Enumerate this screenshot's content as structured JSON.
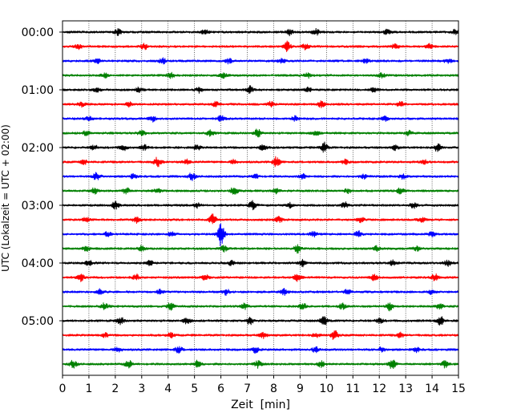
{
  "chart_data": {
    "type": "line",
    "title": "",
    "xlabel": "Zeit  [min]",
    "ylabel": "UTC (Lokalzeit = UTC + 02:00)",
    "xlim": [
      0,
      15
    ],
    "x_ticks": [
      "0",
      "1",
      "2",
      "3",
      "4",
      "5",
      "6",
      "7",
      "8",
      "9",
      "10",
      "11",
      "12",
      "13",
      "14",
      "15"
    ],
    "y_tick_labels": [
      "00:00",
      "01:00",
      "02:00",
      "03:00",
      "04:00",
      "05:00"
    ],
    "grid": "vertical dotted at each minute",
    "legend": "none",
    "trace_interval_min": 15,
    "trace_colors": [
      "#000000",
      "#ff0000",
      "#0000ff",
      "#008000"
    ],
    "series": [
      {
        "start": "00:00",
        "color": "#000000",
        "events": [
          [
            2.1,
            0.5
          ],
          [
            5.4,
            0.4
          ],
          [
            8.6,
            0.5
          ],
          [
            9.6,
            0.5
          ],
          [
            12.3,
            0.4
          ],
          [
            14.9,
            0.5
          ]
        ]
      },
      {
        "start": "00:15",
        "color": "#ff0000",
        "events": [
          [
            0.6,
            0.4
          ],
          [
            3.1,
            0.5
          ],
          [
            8.5,
            0.9
          ],
          [
            9.2,
            0.5
          ],
          [
            12.6,
            0.4
          ],
          [
            13.9,
            0.4
          ]
        ]
      },
      {
        "start": "00:30",
        "color": "#0000ff",
        "events": [
          [
            1.3,
            0.4
          ],
          [
            3.8,
            0.5
          ],
          [
            6.3,
            0.4
          ],
          [
            8.3,
            0.4
          ],
          [
            11.5,
            0.4
          ],
          [
            14.6,
            0.4
          ]
        ]
      },
      {
        "start": "00:45",
        "color": "#008000",
        "events": [
          [
            1.6,
            0.4
          ],
          [
            4.1,
            0.5
          ],
          [
            6.1,
            0.5
          ],
          [
            9.3,
            0.4
          ],
          [
            12.1,
            0.4
          ]
        ]
      },
      {
        "start": "01:00",
        "color": "#000000",
        "events": [
          [
            1.3,
            0.4
          ],
          [
            2.9,
            0.4
          ],
          [
            5.2,
            0.5
          ],
          [
            7.1,
            0.6
          ],
          [
            9.3,
            0.4
          ],
          [
            11.8,
            0.4
          ]
        ]
      },
      {
        "start": "01:15",
        "color": "#ff0000",
        "events": [
          [
            0.7,
            0.4
          ],
          [
            2.5,
            0.4
          ],
          [
            5.8,
            0.4
          ],
          [
            7.9,
            0.5
          ],
          [
            9.8,
            0.5
          ],
          [
            12.8,
            0.4
          ]
        ]
      },
      {
        "start": "01:30",
        "color": "#0000ff",
        "events": [
          [
            1.0,
            0.4
          ],
          [
            3.4,
            0.5
          ],
          [
            6.0,
            0.5
          ],
          [
            8.8,
            0.4
          ],
          [
            12.2,
            0.4
          ]
        ]
      },
      {
        "start": "01:45",
        "color": "#008000",
        "events": [
          [
            0.9,
            0.4
          ],
          [
            3.0,
            0.5
          ],
          [
            5.6,
            0.5
          ],
          [
            7.4,
            0.7
          ],
          [
            9.6,
            0.4
          ],
          [
            13.1,
            0.4
          ]
        ]
      },
      {
        "start": "02:00",
        "color": "#000000",
        "events": [
          [
            1.2,
            0.4
          ],
          [
            2.3,
            0.5
          ],
          [
            3.1,
            0.4
          ],
          [
            5.1,
            0.4
          ],
          [
            7.6,
            0.6
          ],
          [
            9.9,
            0.9
          ],
          [
            12.6,
            0.4
          ],
          [
            14.2,
            0.7
          ]
        ]
      },
      {
        "start": "02:15",
        "color": "#ff0000",
        "events": [
          [
            0.8,
            0.4
          ],
          [
            3.6,
            0.8
          ],
          [
            4.7,
            0.4
          ],
          [
            6.5,
            0.4
          ],
          [
            8.1,
            0.9
          ],
          [
            10.7,
            0.4
          ],
          [
            13.7,
            0.4
          ]
        ]
      },
      {
        "start": "02:30",
        "color": "#0000ff",
        "events": [
          [
            1.3,
            0.7
          ],
          [
            2.7,
            0.4
          ],
          [
            4.9,
            0.6
          ],
          [
            7.3,
            0.4
          ],
          [
            9.1,
            0.4
          ],
          [
            11.4,
            0.4
          ],
          [
            12.9,
            0.4
          ]
        ]
      },
      {
        "start": "02:45",
        "color": "#008000",
        "events": [
          [
            1.2,
            0.5
          ],
          [
            2.4,
            0.6
          ],
          [
            3.6,
            0.4
          ],
          [
            6.5,
            0.7
          ],
          [
            8.1,
            0.4
          ],
          [
            10.8,
            0.4
          ],
          [
            12.8,
            0.6
          ]
        ]
      },
      {
        "start": "03:00",
        "color": "#000000",
        "events": [
          [
            2.0,
            0.6
          ],
          [
            5.1,
            0.4
          ],
          [
            7.2,
            0.8
          ],
          [
            8.6,
            0.4
          ],
          [
            10.7,
            0.5
          ],
          [
            13.3,
            0.5
          ]
        ]
      },
      {
        "start": "03:15",
        "color": "#ff0000",
        "events": [
          [
            0.9,
            0.4
          ],
          [
            2.8,
            0.5
          ],
          [
            5.7,
            0.9
          ],
          [
            8.2,
            0.5
          ],
          [
            11.3,
            0.4
          ],
          [
            13.6,
            0.5
          ]
        ]
      },
      {
        "start": "03:30",
        "color": "#0000ff",
        "events": [
          [
            1.7,
            0.4
          ],
          [
            4.1,
            0.4
          ],
          [
            6.0,
            2.2
          ],
          [
            9.5,
            0.4
          ],
          [
            11.2,
            0.5
          ],
          [
            14.0,
            0.4
          ]
        ]
      },
      {
        "start": "03:45",
        "color": "#008000",
        "events": [
          [
            0.9,
            0.4
          ],
          [
            3.0,
            0.5
          ],
          [
            6.1,
            0.5
          ],
          [
            8.9,
            0.7
          ],
          [
            11.9,
            0.4
          ],
          [
            13.4,
            0.4
          ]
        ]
      },
      {
        "start": "04:00",
        "color": "#000000",
        "events": [
          [
            1.0,
            0.4
          ],
          [
            3.3,
            0.4
          ],
          [
            6.4,
            0.5
          ],
          [
            9.1,
            0.6
          ],
          [
            12.5,
            0.5
          ],
          [
            14.6,
            0.5
          ]
        ]
      },
      {
        "start": "04:15",
        "color": "#ff0000",
        "events": [
          [
            0.7,
            0.6
          ],
          [
            2.8,
            0.5
          ],
          [
            5.4,
            0.5
          ],
          [
            8.9,
            0.6
          ],
          [
            11.8,
            0.5
          ],
          [
            14.1,
            0.6
          ]
        ]
      },
      {
        "start": "04:30",
        "color": "#0000ff",
        "events": [
          [
            1.4,
            0.5
          ],
          [
            3.7,
            0.4
          ],
          [
            6.2,
            0.5
          ],
          [
            8.4,
            0.5
          ],
          [
            10.8,
            0.4
          ],
          [
            14.0,
            0.4
          ]
        ]
      },
      {
        "start": "04:45",
        "color": "#008000",
        "events": [
          [
            1.6,
            0.6
          ],
          [
            4.1,
            0.6
          ],
          [
            6.9,
            0.5
          ],
          [
            9.1,
            0.6
          ],
          [
            10.6,
            0.5
          ],
          [
            12.4,
            0.7
          ],
          [
            14.3,
            0.5
          ]
        ]
      },
      {
        "start": "05:00",
        "color": "#000000",
        "events": [
          [
            2.2,
            0.6
          ],
          [
            4.7,
            0.5
          ],
          [
            7.1,
            0.6
          ],
          [
            9.9,
            0.9
          ],
          [
            12.0,
            0.5
          ],
          [
            14.3,
            0.8
          ]
        ]
      },
      {
        "start": "05:15",
        "color": "#ff0000",
        "events": [
          [
            1.6,
            0.4
          ],
          [
            4.1,
            0.4
          ],
          [
            7.6,
            0.5
          ],
          [
            9.6,
            0.4
          ],
          [
            10.3,
            0.8
          ],
          [
            12.8,
            0.4
          ]
        ]
      },
      {
        "start": "05:30",
        "color": "#0000ff",
        "events": [
          [
            2.1,
            0.5
          ],
          [
            4.4,
            0.6
          ],
          [
            7.3,
            0.5
          ],
          [
            9.6,
            0.5
          ],
          [
            12.1,
            0.4
          ],
          [
            13.4,
            0.4
          ]
        ]
      },
      {
        "start": "05:45",
        "color": "#008000",
        "events": [
          [
            0.4,
            0.6
          ],
          [
            2.5,
            0.7
          ],
          [
            5.1,
            0.6
          ],
          [
            7.4,
            0.6
          ],
          [
            9.8,
            0.5
          ],
          [
            12.5,
            0.9
          ],
          [
            14.5,
            0.6
          ]
        ]
      }
    ]
  }
}
